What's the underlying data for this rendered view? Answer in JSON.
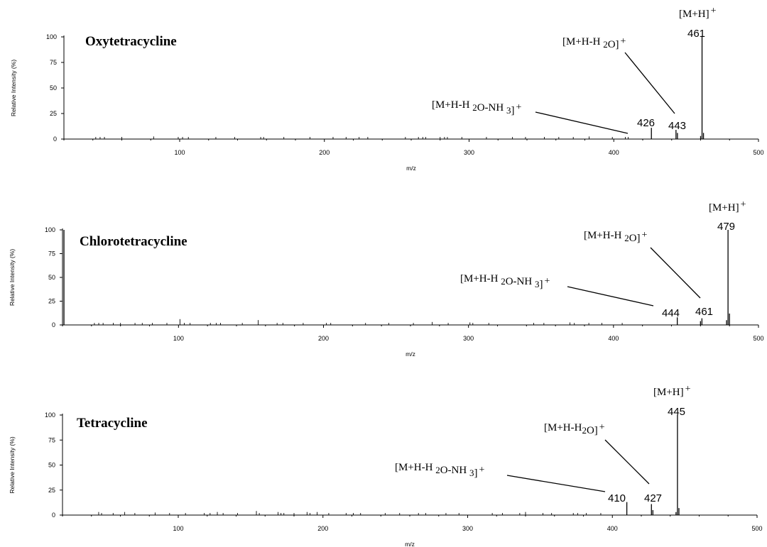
{
  "chart_data": [
    {
      "type": "bar",
      "title": "Oxytetracycline",
      "xlabel": "m/z",
      "ylabel": "Relative Intensity (%)",
      "xlim": [
        20,
        500
      ],
      "ylim": [
        0,
        100
      ],
      "xticks": [
        100,
        200,
        300,
        400,
        500
      ],
      "yticks": [
        0,
        25,
        50,
        75,
        100
      ],
      "peaks": [
        {
          "x": 426,
          "y": 11,
          "label": "426"
        },
        {
          "x": 443,
          "y": 9,
          "label": "443"
        },
        {
          "x": 444,
          "y": 6
        },
        {
          "x": 461,
          "y": 100,
          "label": "461"
        },
        {
          "x": 462,
          "y": 6
        },
        {
          "x": 460,
          "y": 3
        }
      ],
      "noise": [
        [
          42,
          1
        ],
        [
          45,
          1
        ],
        [
          48,
          1
        ],
        [
          60,
          1
        ],
        [
          82,
          1.5
        ],
        [
          99,
          1
        ],
        [
          102,
          1
        ],
        [
          106,
          1
        ],
        [
          125,
          1
        ],
        [
          138,
          1
        ],
        [
          156,
          1
        ],
        [
          158,
          1
        ],
        [
          172,
          1
        ],
        [
          190,
          1
        ],
        [
          206,
          1
        ],
        [
          215,
          1
        ],
        [
          224,
          1
        ],
        [
          230,
          1
        ],
        [
          256,
          1
        ],
        [
          265,
          1
        ],
        [
          268,
          1
        ],
        [
          270,
          1
        ],
        [
          280,
          1
        ],
        [
          283,
          1
        ],
        [
          285,
          1
        ],
        [
          295,
          1
        ],
        [
          312,
          1
        ],
        [
          330,
          1
        ],
        [
          339,
          1
        ],
        [
          352,
          1
        ],
        [
          362,
          1
        ],
        [
          372,
          1
        ],
        [
          383,
          1.5
        ],
        [
          399,
          1
        ],
        [
          408,
          1
        ],
        [
          410,
          1
        ]
      ],
      "annotations": [
        {
          "ion": "[M+H] +",
          "peak": "461"
        },
        {
          "ion": "[M+H-H 2O]+",
          "peak": "443"
        },
        {
          "ion": "[M+H-H 2O-NH 3]+",
          "peak": "426"
        }
      ]
    },
    {
      "type": "bar",
      "title": "Chlorotetracycline",
      "xlabel": "m/z",
      "ylabel": "Relative Intensity (%)",
      "xlim": [
        20,
        500
      ],
      "ylim": [
        0,
        100
      ],
      "xticks": [
        100,
        200,
        300,
        400,
        500
      ],
      "yticks": [
        0,
        25,
        50,
        75,
        100
      ],
      "peaks": [
        {
          "x": 21,
          "y": 100
        },
        {
          "x": 444,
          "y": 8,
          "label": "444"
        },
        {
          "x": 460,
          "y": 4
        },
        {
          "x": 461,
          "y": 7,
          "label": "461"
        },
        {
          "x": 478,
          "y": 5
        },
        {
          "x": 479,
          "y": 100,
          "label": "479"
        },
        {
          "x": 480,
          "y": 12
        }
      ],
      "noise": [
        [
          42,
          1
        ],
        [
          45,
          1
        ],
        [
          48,
          1
        ],
        [
          55,
          1
        ],
        [
          60,
          1
        ],
        [
          70,
          1
        ],
        [
          75,
          1
        ],
        [
          82,
          1
        ],
        [
          92,
          1
        ],
        [
          101,
          5
        ],
        [
          104,
          1
        ],
        [
          108,
          1
        ],
        [
          122,
          1
        ],
        [
          126,
          1
        ],
        [
          129,
          1
        ],
        [
          144,
          1
        ],
        [
          155,
          4
        ],
        [
          168,
          1
        ],
        [
          172,
          1
        ],
        [
          186,
          1
        ],
        [
          202,
          1
        ],
        [
          205,
          1
        ],
        [
          229,
          1
        ],
        [
          245,
          1
        ],
        [
          262,
          1
        ],
        [
          275,
          2
        ],
        [
          286,
          1
        ],
        [
          301,
          1.5
        ],
        [
          303,
          1
        ],
        [
          314,
          1
        ],
        [
          345,
          1
        ],
        [
          352,
          1
        ],
        [
          370,
          1.5
        ],
        [
          373,
          1
        ],
        [
          383,
          1
        ],
        [
          392,
          1
        ],
        [
          406,
          1
        ]
      ],
      "annotations": [
        {
          "ion": "[M+H] +",
          "peak": "479"
        },
        {
          "ion": "[M+H-H 2O]+",
          "peak": "461"
        },
        {
          "ion": "[M+H-H 2O-NH 3]+",
          "peak": "444"
        }
      ]
    },
    {
      "type": "bar",
      "title": "Tetracycline",
      "xlabel": "m/z",
      "ylabel": "Relative Intensity (%)",
      "xlim": [
        20,
        500
      ],
      "ylim": [
        0,
        100
      ],
      "xticks": [
        100,
        200,
        300,
        400,
        500
      ],
      "yticks": [
        0,
        25,
        50,
        75,
        100
      ],
      "peaks": [
        {
          "x": 410,
          "y": 13,
          "label": "410"
        },
        {
          "x": 427,
          "y": 11,
          "label": "427"
        },
        {
          "x": 428,
          "y": 5
        },
        {
          "x": 445,
          "y": 100,
          "label": "445"
        },
        {
          "x": 446,
          "y": 7
        },
        {
          "x": 444,
          "y": 3
        }
      ],
      "noise": [
        [
          45,
          2
        ],
        [
          47,
          1
        ],
        [
          55,
          1
        ],
        [
          63,
          2
        ],
        [
          70,
          1
        ],
        [
          84,
          1.5
        ],
        [
          94,
          1
        ],
        [
          105,
          1
        ],
        [
          118,
          1
        ],
        [
          122,
          1
        ],
        [
          127,
          2
        ],
        [
          131,
          1
        ],
        [
          141,
          1
        ],
        [
          154,
          3
        ],
        [
          156,
          1
        ],
        [
          169,
          2
        ],
        [
          171,
          1
        ],
        [
          173,
          1
        ],
        [
          180,
          1
        ],
        [
          189,
          2
        ],
        [
          191,
          1
        ],
        [
          196,
          2
        ],
        [
          204,
          1
        ],
        [
          216,
          1
        ],
        [
          221,
          1
        ],
        [
          226,
          1
        ],
        [
          243,
          1
        ],
        [
          253,
          1
        ],
        [
          266,
          1
        ],
        [
          271,
          1
        ],
        [
          285,
          1
        ],
        [
          294,
          1
        ],
        [
          317,
          1
        ],
        [
          324,
          1
        ],
        [
          336,
          1
        ],
        [
          340,
          2
        ],
        [
          352,
          1
        ],
        [
          358,
          1
        ],
        [
          373,
          1
        ],
        [
          376,
          1
        ],
        [
          382,
          1
        ],
        [
          392,
          1
        ]
      ],
      "annotations": [
        {
          "ion": "[M+H]+",
          "peak": "445"
        },
        {
          "ion": "[M+H-H2O]+",
          "peak": "427"
        },
        {
          "ion": "[M+H-H 2O-NH 3]+",
          "peak": "410"
        }
      ]
    }
  ]
}
